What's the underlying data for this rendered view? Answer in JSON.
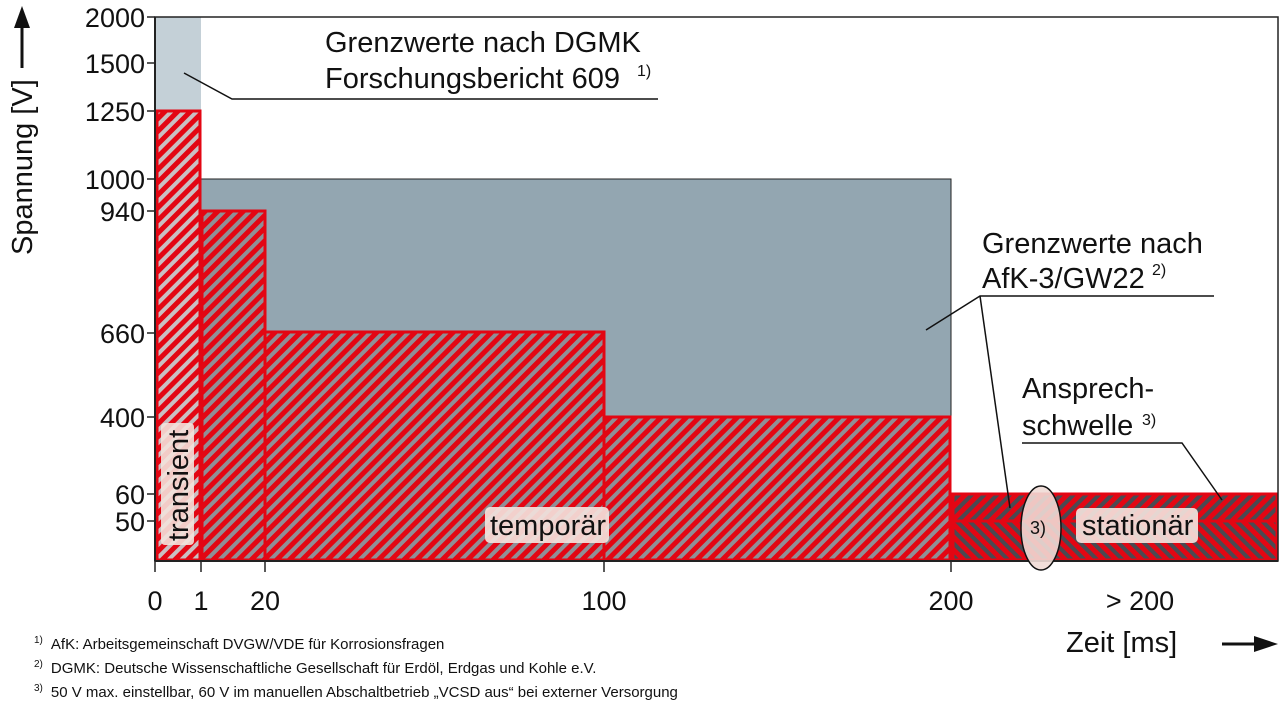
{
  "chart_data": {
    "type": "area",
    "ylabel": "Spannung [V]",
    "xlabel": "Zeit [ms]",
    "y_ticks": [
      "2000",
      "1500",
      "1250",
      "1000",
      "940",
      "660",
      "400",
      "60",
      "50"
    ],
    "x_ticks": [
      "0",
      "1",
      "20",
      "100",
      "200",
      "> 200"
    ],
    "series": [
      {
        "name": "Grenzwerte nach DGMK Forschungsbericht 609",
        "color": "#c4d0d7",
        "steps": [
          {
            "x_from": 0,
            "x_to": 1,
            "y": 2000
          }
        ]
      },
      {
        "name": "Grenzwerte nach AfK-3/GW22",
        "color": "#93a6b1",
        "steps": [
          {
            "x_from": 1,
            "x_to": 200,
            "y": 1000
          }
        ]
      },
      {
        "name": "Ansprechschwelle",
        "color": "#e30613",
        "steps": [
          {
            "x_from": 0,
            "x_to": 1,
            "y": 1250
          },
          {
            "x_from": 1,
            "x_to": 20,
            "y": 940
          },
          {
            "x_from": 20,
            "x_to": 100,
            "y": 660
          },
          {
            "x_from": 100,
            "x_to": 200,
            "y": 400
          },
          {
            "x_from": 200,
            "x_to": "> 200",
            "y": 60
          },
          {
            "x_from": 200,
            "x_to": "> 200",
            "y": 50
          }
        ]
      }
    ],
    "region_labels": {
      "transient": "transient",
      "temporary": "temporär",
      "stationary": "stationär",
      "note": "3)"
    },
    "annotations": {
      "dgmk_line1": "Grenzwerte nach DGMK",
      "dgmk_line2": "Forschungsbericht 609",
      "dgmk_ref": "1)",
      "afk_line1": "Grenzwerte nach",
      "afk_line2": "AfK-3/GW22",
      "afk_ref": "2)",
      "threshold_line1": "Ansprech-",
      "threshold_line2": "schwelle",
      "threshold_ref": "3)"
    }
  },
  "footnotes": [
    {
      "mark": "1)",
      "text": "AfK: Arbeitsgemeinschaft DVGW/VDE für Korrosionsfragen"
    },
    {
      "mark": "2)",
      "text": "DGMK: Deutsche Wissenschaftliche Gesellschaft für Erdöl, Erdgas und Kohle e.V."
    },
    {
      "mark": "3)",
      "text": "50 V max. einstellbar, 60 V im manuellen Abschaltbetrieb „VCSD aus“ bei externer Versorgung"
    }
  ]
}
